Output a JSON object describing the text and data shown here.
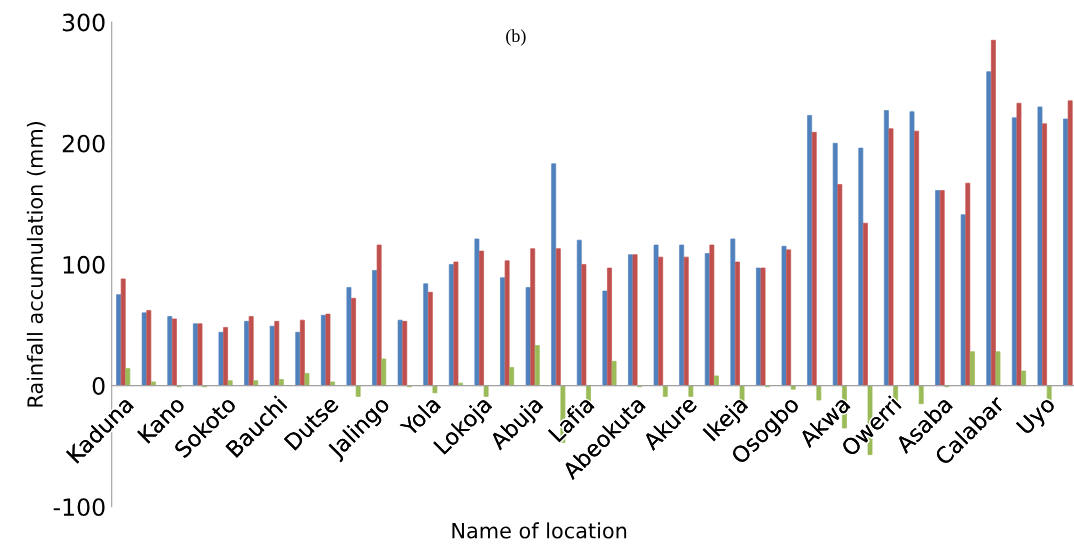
{
  "chart_data": {
    "type": "bar",
    "title": "(b)",
    "xlabel": "Name of location",
    "ylabel": "Rainfall accumulation (mm)",
    "categories": [
      "Kaduna",
      null,
      "Kano",
      null,
      "Sokoto",
      null,
      "Bauchi",
      null,
      "Dutse",
      null,
      "Jalingo",
      null,
      "Yola",
      null,
      "Lokoja",
      null,
      "Abuja",
      null,
      "Lafia",
      null,
      "Abeokuta",
      null,
      "Akure",
      null,
      "Ikeja",
      null,
      "Osogbo",
      null,
      "Akwa",
      null,
      "Owerri",
      null,
      "Asaba",
      null,
      "Calabar",
      null,
      "Uyo",
      null
    ],
    "series": [
      {
        "color": "#4f81bd",
        "values": [
          75,
          60,
          57,
          51,
          44,
          53,
          49,
          44,
          58,
          81,
          95,
          54,
          84,
          100,
          121,
          89,
          81,
          183,
          120,
          78,
          108,
          116,
          116,
          109,
          121,
          97,
          115,
          223,
          200,
          196,
          227,
          226,
          161,
          141,
          259,
          221,
          230,
          220
        ]
      },
      {
        "color": "#c0504d",
        "values": [
          88,
          62,
          55,
          51,
          48,
          57,
          53,
          54,
          59,
          72,
          116,
          53,
          77,
          102,
          111,
          103,
          113,
          113,
          100,
          97,
          108,
          106,
          106,
          116,
          102,
          97,
          112,
          209,
          166,
          134,
          212,
          210,
          161,
          167,
          285,
          233,
          216,
          235
        ]
      },
      {
        "color": "#9bbb59",
        "values": [
          14,
          3,
          -1,
          -1,
          4,
          4,
          5,
          10,
          3,
          -9,
          22,
          -1,
          -6,
          2,
          -9,
          15,
          33,
          -47,
          -19,
          20,
          -1,
          -9,
          -9,
          8,
          -18,
          -1,
          -3,
          -12,
          -35,
          -57,
          -15,
          -15,
          -1,
          28,
          28,
          12,
          -14,
          null
        ]
      }
    ],
    "ylim": [
      -100,
      300
    ],
    "yticks": [
      {
        "value": -100,
        "label": "-100"
      },
      0,
      100,
      200,
      300
    ],
    "grid": false,
    "legend": false
  }
}
